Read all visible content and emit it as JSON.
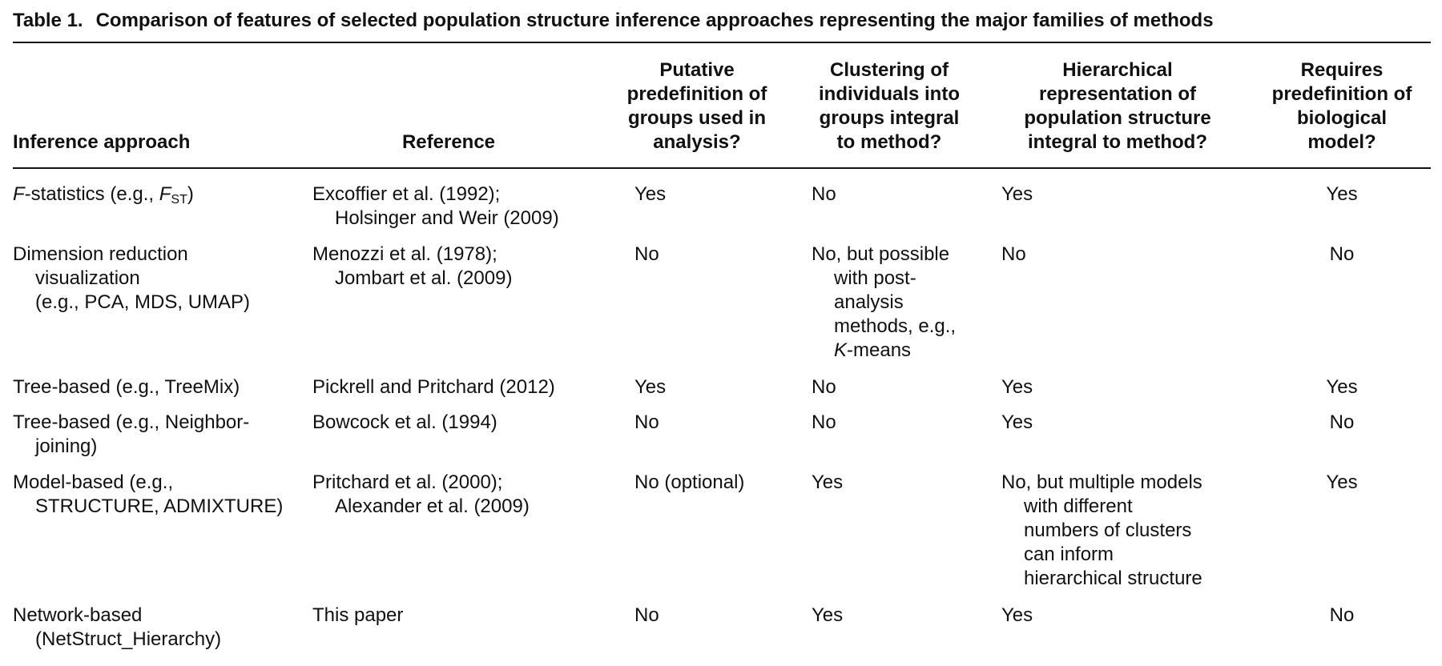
{
  "caption": {
    "label": "Table 1.",
    "text": "Comparison of features of selected population structure inference approaches representing the major families of methods"
  },
  "headers": {
    "approach": "Inference approach",
    "reference": "Reference",
    "predef_groups": [
      "Putative",
      "predefinition of",
      "groups used in",
      "analysis?"
    ],
    "clustering": [
      "Clustering of",
      "individuals into",
      "groups integral",
      "to method?"
    ],
    "hierarchical": [
      "Hierarchical",
      "representation of",
      "population structure",
      "integral to method?"
    ],
    "bio_model": [
      "Requires",
      "predefinition of",
      "biological",
      "model?"
    ]
  },
  "rows": [
    {
      "approach": [
        "-statistics (e.g., ",
        ")"
      ],
      "approach_italic_F": "F",
      "approach_italic_fst": "F",
      "approach_sub": "ST",
      "reference": [
        "Excoffier et al. (1992);",
        "Holsinger and Weir (2009)"
      ],
      "predef": "Yes",
      "clustering": [
        "No"
      ],
      "hierarchical": [
        "Yes"
      ],
      "bio_model": "Yes"
    },
    {
      "approach": [
        "Dimension reduction",
        "visualization",
        "(e.g., PCA, MDS, UMAP)"
      ],
      "reference": [
        "Menozzi et al. (1978);",
        "Jombart et al. (2009)"
      ],
      "predef": "No",
      "clustering": [
        "No, but possible",
        "with post-",
        "analysis",
        "methods, e.g.,"
      ],
      "clustering_italic": "K",
      "clustering_last": "-means",
      "hierarchical": [
        "No"
      ],
      "bio_model": "No"
    },
    {
      "approach": [
        "Tree-based (e.g., TreeMix)"
      ],
      "reference": [
        "Pickrell and Pritchard (2012)"
      ],
      "predef": "Yes",
      "clustering": [
        "No"
      ],
      "hierarchical": [
        "Yes"
      ],
      "bio_model": "Yes"
    },
    {
      "approach": [
        "Tree-based (e.g., Neighbor-",
        "joining)"
      ],
      "reference": [
        "Bowcock et al. (1994)"
      ],
      "predef": "No",
      "clustering": [
        "No"
      ],
      "hierarchical": [
        "Yes"
      ],
      "bio_model": "No"
    },
    {
      "approach": [
        "Model-based (e.g.,",
        "STRUCTURE, ADMIXTURE)"
      ],
      "reference": [
        "Pritchard et al. (2000);",
        "Alexander et al. (2009)"
      ],
      "predef": "No (optional)",
      "clustering": [
        "Yes"
      ],
      "hierarchical": [
        "No, but multiple models",
        "with different",
        "numbers of clusters",
        "can inform",
        "hierarchical structure"
      ],
      "bio_model": "Yes"
    },
    {
      "approach": [
        "Network-based",
        "(NetStruct_Hierarchy)"
      ],
      "reference": [
        "This paper"
      ],
      "predef": "No",
      "clustering": [
        "Yes"
      ],
      "hierarchical": [
        "Yes"
      ],
      "bio_model": "No"
    }
  ]
}
